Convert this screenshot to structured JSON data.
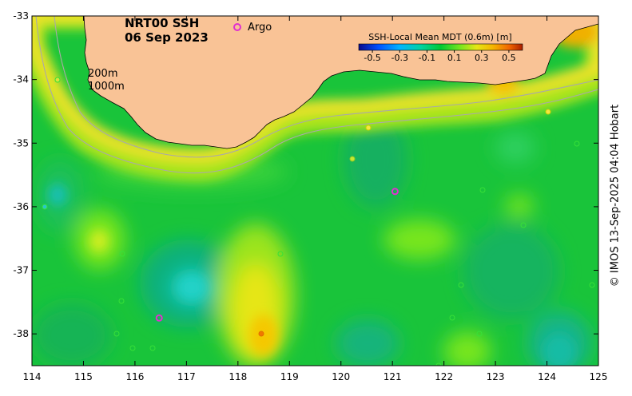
{
  "title": {
    "line1": "NRT00 SSH",
    "line2": "06 Sep 2023"
  },
  "legend": {
    "argo_label": "Argo",
    "argo_color": "#e030d0"
  },
  "isobaths": {
    "label_200": "200m",
    "label_1000": "1000m"
  },
  "colorbar": {
    "title": "SSH-Local Mean MDT (0.6m) [m]",
    "ticks": [
      "-0.5",
      "-0.3",
      "-0.1",
      "0.1",
      "0.3",
      "0.5"
    ],
    "colors": [
      "#0a0a8c",
      "#0050ff",
      "#00b4ff",
      "#00d2a0",
      "#00c832",
      "#78e61e",
      "#e6e614",
      "#f5b400",
      "#f06400",
      "#aa1e00"
    ]
  },
  "axes": {
    "x_ticks": [
      "114",
      "115",
      "116",
      "117",
      "118",
      "119",
      "120",
      "121",
      "122",
      "123",
      "124",
      "125"
    ],
    "y_ticks": [
      "-33",
      "-34",
      "-35",
      "-36",
      "-37",
      "-38"
    ],
    "xlim": [
      114,
      125
    ],
    "ylim": [
      -38.5,
      -33
    ]
  },
  "colors": {
    "land": "#f9c396",
    "ocean": "#19c43a",
    "coast": "#000000",
    "isobath": "#a9a9a9"
  },
  "credit": "© IMOS 13-Sep-2025 04:04 Hobart",
  "argo_floats": [
    {
      "lon": 121.05,
      "lat": -35.76
    },
    {
      "lon": 116.47,
      "lat": -37.75
    }
  ]
}
